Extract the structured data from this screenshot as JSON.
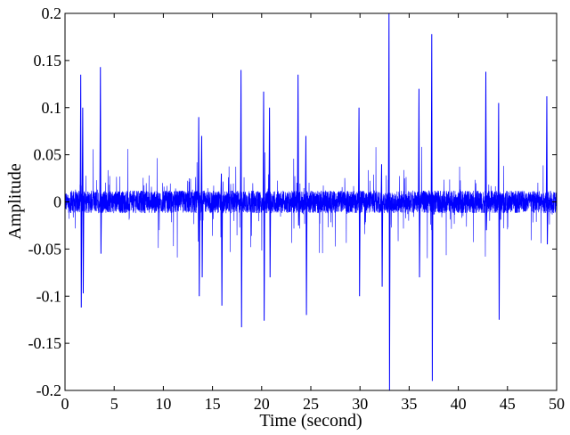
{
  "chart_data": {
    "type": "line",
    "title": "",
    "xlabel": "Time (second)",
    "ylabel": "Amplitude",
    "xlim": [
      0,
      50
    ],
    "ylim": [
      -0.2,
      0.2
    ],
    "xticks": [
      0,
      5,
      10,
      15,
      20,
      25,
      30,
      35,
      40,
      45,
      50
    ],
    "yticks": [
      -0.2,
      -0.15,
      -0.1,
      -0.05,
      0,
      0.05,
      0.1,
      0.15,
      0.2
    ],
    "xtick_labels": [
      "0",
      "5",
      "10",
      "15",
      "20",
      "25",
      "30",
      "35",
      "40",
      "45",
      "50"
    ],
    "ytick_labels": [
      "-0.2",
      "-0.15",
      "-0.1",
      "-0.05",
      "0",
      "0.05",
      "0.1",
      "0.15",
      "0.2"
    ],
    "grid": false,
    "line_color": "#0000ff",
    "noise_amplitude": 0.012,
    "spikes": [
      {
        "x": 1.6,
        "high": 0.135,
        "low": -0.112
      },
      {
        "x": 1.8,
        "high": 0.1,
        "low": -0.097
      },
      {
        "x": 3.6,
        "high": 0.143,
        "low": -0.055
      },
      {
        "x": 17.9,
        "high": 0.14,
        "low": -0.133
      },
      {
        "x": 20.2,
        "high": 0.117,
        "low": -0.126
      },
      {
        "x": 20.8,
        "high": 0.1,
        "low": -0.08
      },
      {
        "x": 23.7,
        "high": 0.135,
        "low": -0.025
      },
      {
        "x": 24.5,
        "high": 0.07,
        "low": -0.12
      },
      {
        "x": 32.95,
        "high": 0.2,
        "low": -0.2
      },
      {
        "x": 37.3,
        "high": 0.178,
        "low": -0.19
      },
      {
        "x": 36.0,
        "high": 0.12,
        "low": -0.08
      },
      {
        "x": 44.1,
        "high": 0.105,
        "low": -0.125
      },
      {
        "x": 42.8,
        "high": 0.138,
        "low": -0.03
      },
      {
        "x": 29.9,
        "high": 0.1,
        "low": -0.1
      },
      {
        "x": 13.6,
        "high": 0.09,
        "low": -0.1
      },
      {
        "x": 13.9,
        "high": 0.07,
        "low": -0.08
      },
      {
        "x": 49.0,
        "high": 0.112,
        "low": -0.045
      },
      {
        "x": 15.9,
        "high": 0.03,
        "low": -0.11
      },
      {
        "x": 32.2,
        "high": 0.04,
        "low": -0.09
      }
    ]
  }
}
